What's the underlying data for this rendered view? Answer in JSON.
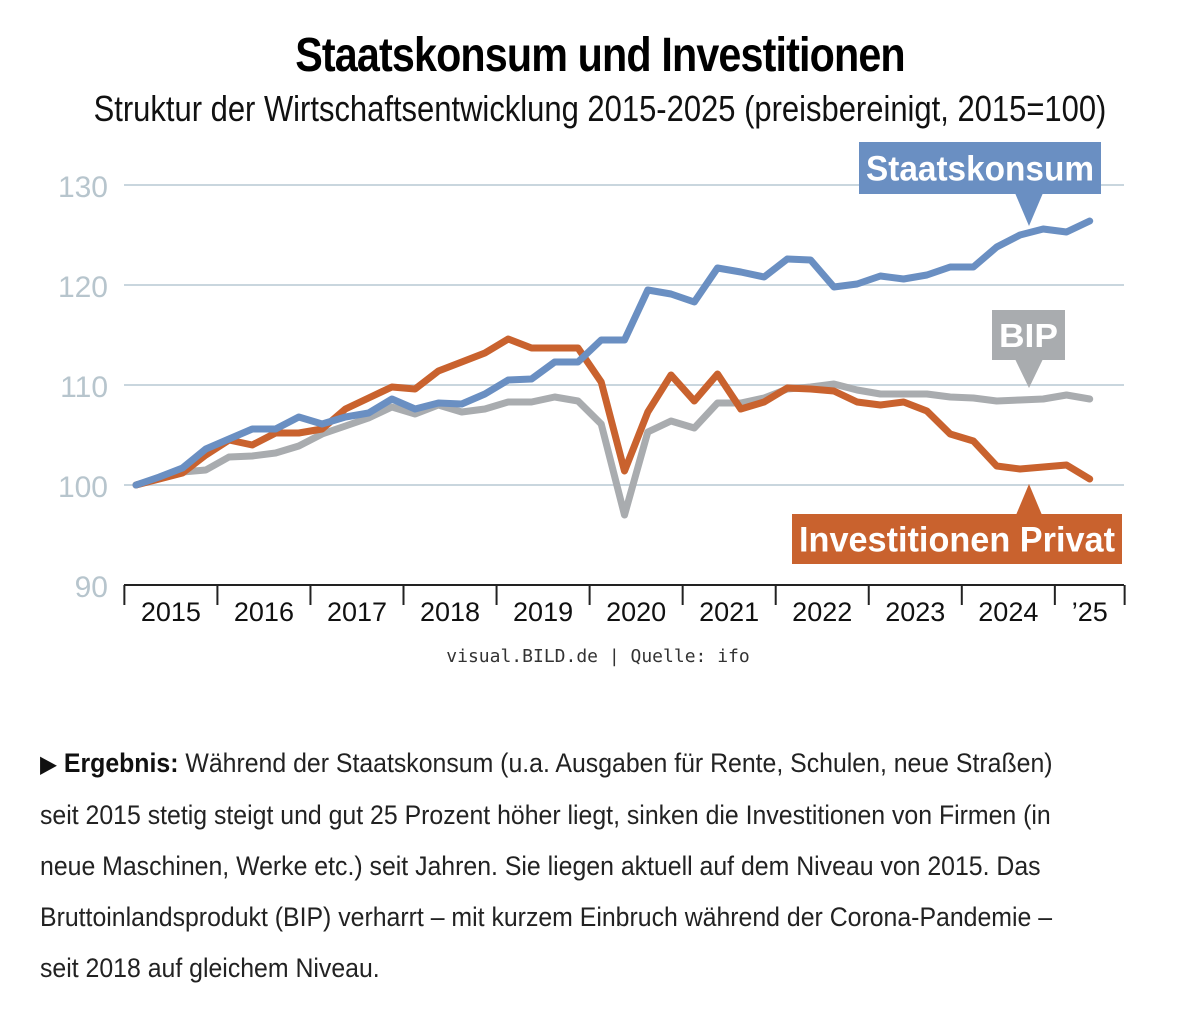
{
  "title": "Staatskonsum und Investitionen",
  "subtitle": "Struktur der Wirtschaftsentwicklung 2015-2025 (preisbereinigt, 2015=100)",
  "source": "visual.BILD.de | Quelle: ifo",
  "result": {
    "bullet": "▶",
    "label": "Ergebnis:",
    "text": "Während der Staatskonsum (u.a. Ausgaben für Rente, Schulen, neue Straßen) seit 2015 stetig steigt und gut 25 Prozent höher liegt, sinken die Investitionen von Firmen (in neue Maschinen, Werke etc.) seit Jahren. Sie liegen aktuell auf dem Niveau von 2015. Das Bruttoinlandsprodukt (BIP) verharrt – mit kurzem Einbruch während der Corona-Pandemie – seit 2018 auf gleichem Niveau."
  },
  "colors": {
    "staatskonsum": "#6A8FC2",
    "bip": "#A9ACAF",
    "investitionen": "#C9622E",
    "grid": "#C9D6DE",
    "tick_label": "#B7C5CD",
    "axis": "#222222"
  },
  "chart_data": {
    "type": "line",
    "title": "Staatskonsum und Investitionen",
    "ylim": [
      90,
      130
    ],
    "yticks": [
      90,
      100,
      110,
      120,
      130
    ],
    "grid": true,
    "x_start": 2015.0,
    "x_end": 2025.5,
    "x_step": 0.25,
    "year_labels": [
      "2015",
      "2016",
      "2017",
      "2018",
      "2019",
      "2020",
      "2021",
      "2022",
      "2023",
      "2024",
      "’25"
    ],
    "series": [
      {
        "name": "Staatskonsum",
        "label": "Staatskonsum",
        "color_key": "staatskonsum",
        "label_placement": "top-right",
        "values": [
          100.0,
          100.8,
          101.7,
          103.6,
          104.6,
          105.6,
          105.6,
          106.8,
          106.1,
          106.8,
          107.2,
          108.6,
          107.6,
          108.2,
          108.1,
          109.1,
          110.5,
          110.6,
          112.3,
          112.3,
          114.5,
          114.5,
          119.5,
          119.1,
          118.3,
          121.7,
          121.3,
          120.8,
          122.6,
          122.5,
          119.8,
          120.1,
          120.9,
          120.6,
          121.0,
          121.8,
          121.8,
          123.8,
          125.0,
          125.6,
          125.3,
          126.4
        ]
      },
      {
        "name": "BIP",
        "label": "BIP",
        "color_key": "bip",
        "label_placement": "right",
        "values": [
          100.0,
          100.7,
          101.3,
          101.5,
          102.8,
          102.9,
          103.2,
          103.9,
          105.1,
          105.9,
          106.7,
          107.8,
          107.1,
          108.0,
          107.3,
          107.6,
          108.3,
          108.3,
          108.8,
          108.4,
          106.1,
          97.0,
          105.3,
          106.4,
          105.7,
          108.2,
          108.2,
          108.7,
          109.6,
          109.8,
          110.1,
          109.5,
          109.1,
          109.1,
          109.1,
          108.8,
          108.7,
          108.4,
          108.5,
          108.6,
          109.0,
          108.6
        ]
      },
      {
        "name": "Investitionen Privat",
        "label": "Investitionen Privat",
        "color_key": "investitionen",
        "label_placement": "bottom-right",
        "values": [
          100.0,
          100.6,
          101.2,
          103.0,
          104.5,
          104.0,
          105.2,
          105.2,
          105.6,
          107.6,
          108.7,
          109.8,
          109.6,
          111.4,
          112.3,
          113.2,
          114.6,
          113.7,
          113.7,
          113.7,
          110.3,
          101.4,
          107.3,
          111.0,
          108.4,
          111.1,
          107.6,
          108.3,
          109.7,
          109.6,
          109.4,
          108.3,
          108.0,
          108.3,
          107.4,
          105.1,
          104.4,
          101.9,
          101.6,
          101.8,
          102.0,
          100.6
        ]
      }
    ]
  }
}
